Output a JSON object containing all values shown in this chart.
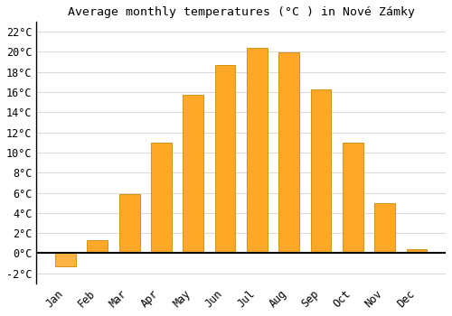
{
  "months": [
    "Jan",
    "Feb",
    "Mar",
    "Apr",
    "May",
    "Jun",
    "Jul",
    "Aug",
    "Sep",
    "Oct",
    "Nov",
    "Dec"
  ],
  "temperatures": [
    -1.3,
    1.3,
    5.9,
    11.0,
    15.7,
    18.7,
    20.4,
    19.9,
    16.3,
    11.0,
    5.0,
    0.4
  ],
  "bar_color_positive": "#FFA726",
  "bar_color_negative": "#FFB347",
  "bar_edge_color": "#CC8800",
  "title": "Average monthly temperatures (°C ) in Nové Zámky",
  "ylim": [
    -3,
    23
  ],
  "yticks": [
    -2,
    0,
    2,
    4,
    6,
    8,
    10,
    12,
    14,
    16,
    18,
    20,
    22
  ],
  "background_color": "#ffffff",
  "grid_color": "#d8d8d8",
  "title_fontsize": 9.5,
  "tick_fontsize": 8.5
}
